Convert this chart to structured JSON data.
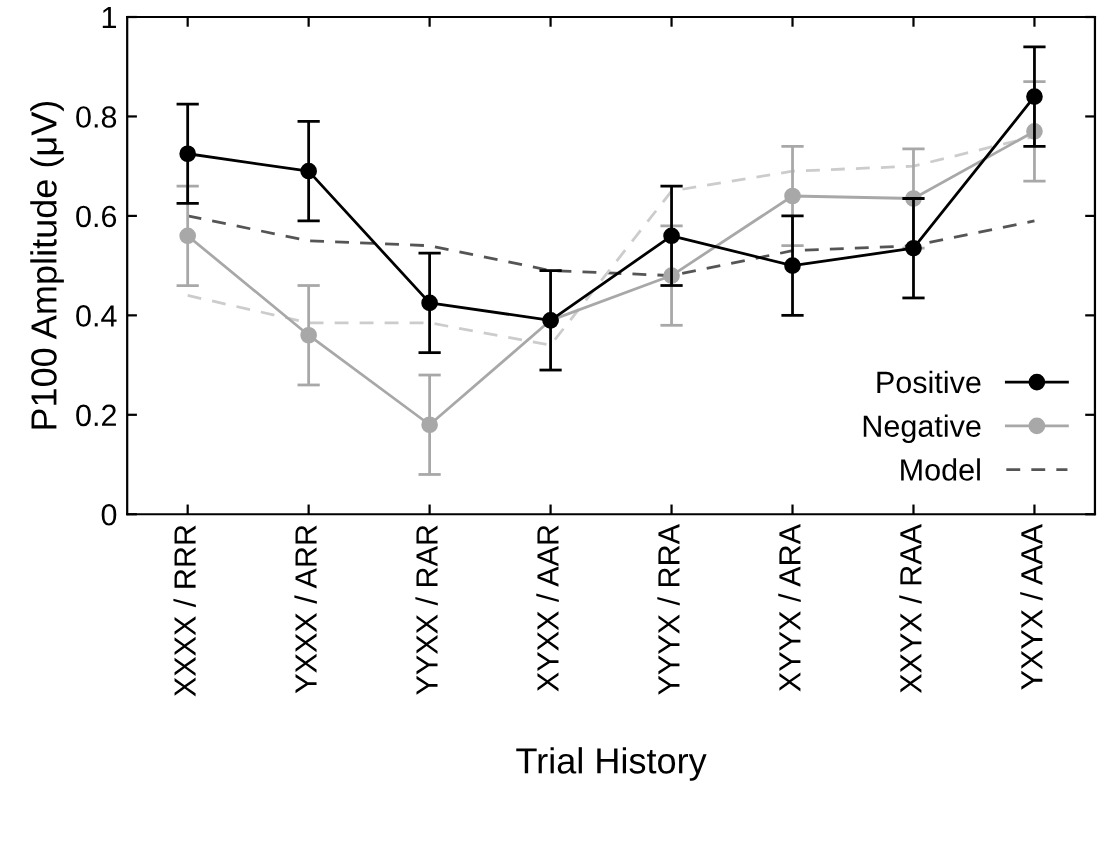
{
  "chart_data": {
    "type": "line",
    "xlabel": "Trial History",
    "ylabel": "P100 Amplitude (μV)",
    "categories": [
      "XXXX / RRR",
      "YXXX / ARR",
      "YYXX / RAR",
      "XYXX / AAR",
      "YYYX / RRA",
      "XYYX / ARA",
      "XXYX / RAA",
      "YXYX / AAA"
    ],
    "ylim": [
      0,
      1
    ],
    "yticks": [
      0,
      0.2,
      0.4,
      0.6,
      0.8,
      1
    ],
    "grid": false,
    "legend": "bottom right",
    "series": [
      {
        "name": "Model",
        "color": "#555555",
        "line_style": "dashed",
        "marker": "none",
        "values": [
          0.6,
          0.55,
          0.54,
          0.49,
          0.48,
          0.53,
          0.54,
          0.59
        ]
      },
      {
        "color": "#cccccc",
        "line_style": "dashed",
        "marker": "none",
        "values": [
          0.44,
          0.385,
          0.385,
          0.34,
          0.65,
          0.69,
          0.7,
          0.76
        ]
      },
      {
        "name": "Negative",
        "color": "#a8a8a8",
        "marker": "circle",
        "line_style": "solid",
        "values": [
          0.56,
          0.36,
          0.18,
          0.39,
          0.48,
          0.64,
          0.635,
          0.77
        ],
        "errors": [
          0.1,
          0.1,
          0.1,
          null,
          0.1,
          0.1,
          0.1,
          0.1
        ]
      },
      {
        "name": "Positive",
        "color": "#000000",
        "marker": "circle",
        "line_style": "solid",
        "values": [
          0.725,
          0.69,
          0.425,
          0.39,
          0.56,
          0.5,
          0.535,
          0.84
        ],
        "errors": [
          0.1,
          0.1,
          0.1,
          0.1,
          0.1,
          0.1,
          0.1,
          0.1
        ]
      }
    ]
  }
}
